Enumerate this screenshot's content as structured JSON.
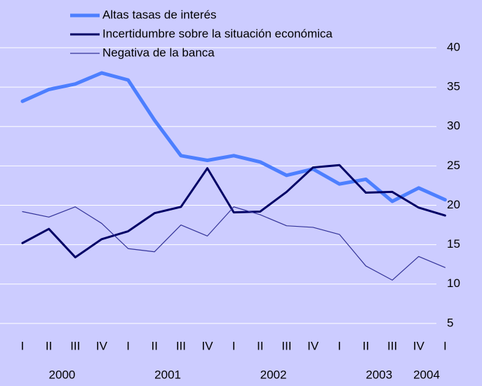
{
  "chart_data": {
    "type": "line",
    "categories": [
      "I",
      "II",
      "III",
      "IV",
      "I",
      "II",
      "III",
      "IV",
      "I",
      "II",
      "III",
      "IV",
      "I",
      "II",
      "III",
      "IV",
      "I"
    ],
    "year_groups": [
      "2000",
      "2001",
      "2002",
      "2003",
      "2004"
    ],
    "series": [
      {
        "name": "Altas tasas de interés",
        "color": "#4d7fff",
        "values": [
          33.2,
          34.7,
          35.4,
          36.8,
          35.9,
          30.8,
          26.3,
          25.7,
          26.3,
          25.5,
          23.8,
          24.6,
          22.7,
          23.3,
          20.5,
          22.2,
          20.7
        ]
      },
      {
        "name": "Incertidumbre sobre la situación económica",
        "color": "#000066",
        "values": [
          15.2,
          17.0,
          13.4,
          15.7,
          16.7,
          19.0,
          19.8,
          24.7,
          19.1,
          19.2,
          21.7,
          24.8,
          25.1,
          21.6,
          21.7,
          19.7,
          18.7
        ]
      },
      {
        "name": "Negativa de la banca",
        "color": "#333399",
        "values": [
          19.2,
          18.5,
          19.8,
          17.7,
          14.5,
          14.1,
          17.5,
          16.1,
          19.8,
          18.8,
          17.4,
          17.2,
          16.3,
          12.3,
          10.5,
          13.5,
          12.1
        ]
      }
    ],
    "ylim": [
      0,
      40
    ],
    "yticks": [
      5,
      10,
      15,
      20,
      25,
      30,
      35,
      40
    ],
    "grid": true,
    "legend": "top-left"
  }
}
